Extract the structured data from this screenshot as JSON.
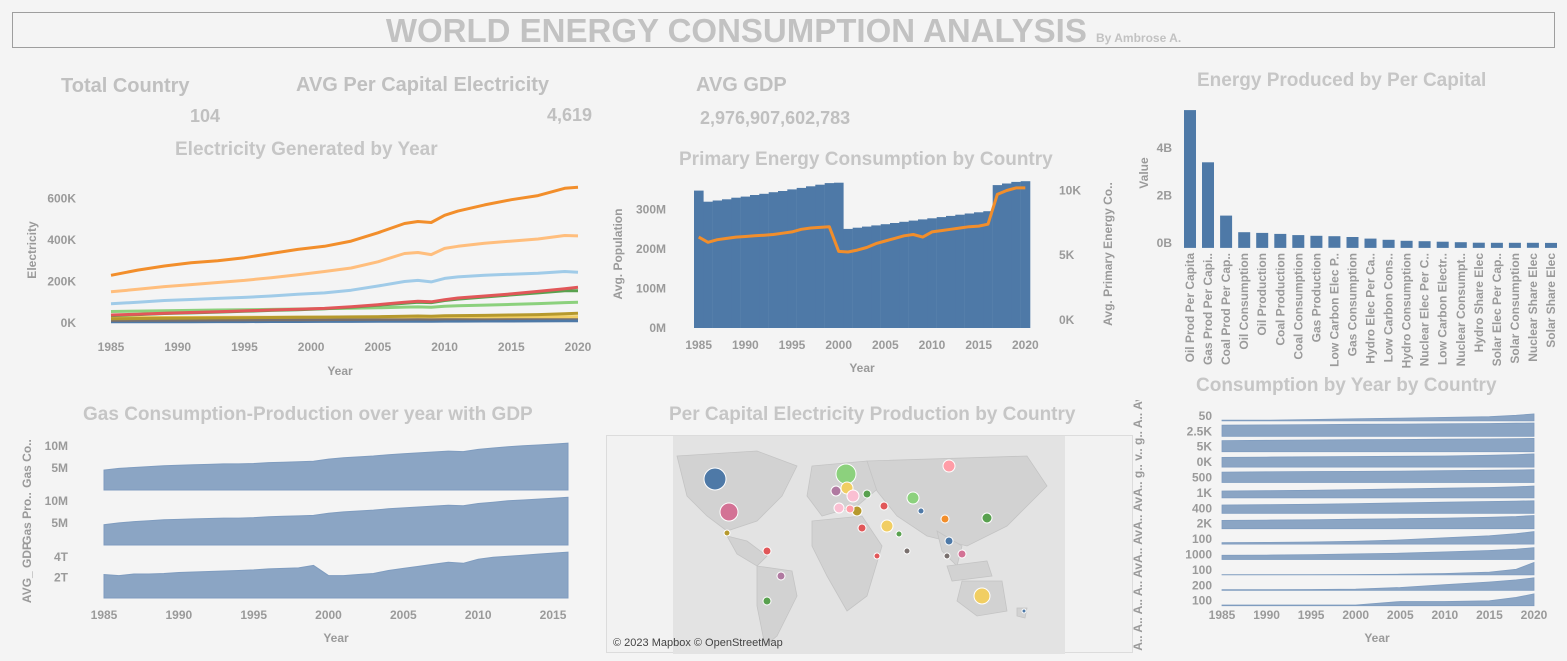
{
  "header": {
    "title": "WORLD ENERGY CONSUMPTION ANALYSIS",
    "byline": "By Ambrose A."
  },
  "kpis": [
    {
      "label": "Total Country",
      "value": "104"
    },
    {
      "label": "AVG Per Capital Electricity",
      "value": "4,619"
    },
    {
      "label": "AVG GDP",
      "value": "2,976,907,602,783"
    }
  ],
  "colors": {
    "bar_blue": "#4e79a7",
    "area_blue": "#8ba5c4",
    "line_orange": "#f28e2b",
    "text_grey": "#c6c6c6",
    "axis_grey": "#9a9a9a"
  },
  "map": {
    "title": "Per Capital Electricity Production by Country",
    "credit": "© 2023 Mapbox © OpenStreetMap"
  },
  "chart_data": [
    {
      "id": "electricity",
      "type": "line",
      "title": "Electricity Generated by Year",
      "xlabel": "Year",
      "ylabel": "Electricity",
      "xlim": [
        1985,
        2020
      ],
      "ylim": [
        -20000,
        700000
      ],
      "x_ticks": [
        1985,
        1990,
        1995,
        2000,
        2005,
        2010,
        2015,
        2020
      ],
      "y_ticks": [
        0,
        200000,
        400000,
        600000
      ],
      "y_tick_labels": [
        "0K",
        "200K",
        "400K",
        "600K"
      ],
      "x": [
        1985,
        1987,
        1989,
        1991,
        1993,
        1995,
        1997,
        1999,
        2001,
        2003,
        2005,
        2007,
        2008,
        2009,
        2010,
        2011,
        2013,
        2015,
        2017,
        2019,
        2020
      ],
      "series": [
        {
          "color": "#f28e2b",
          "values": [
            230000,
            255000,
            275000,
            290000,
            300000,
            315000,
            335000,
            355000,
            370000,
            395000,
            435000,
            480000,
            490000,
            485000,
            520000,
            540000,
            570000,
            595000,
            615000,
            650000,
            655000
          ]
        },
        {
          "color": "#ffbe7d",
          "values": [
            150000,
            162000,
            175000,
            185000,
            195000,
            205000,
            218000,
            232000,
            248000,
            265000,
            295000,
            335000,
            340000,
            330000,
            360000,
            370000,
            385000,
            395000,
            405000,
            422000,
            420000
          ]
        },
        {
          "color": "#a0cbe8",
          "values": [
            92000,
            100000,
            108000,
            113000,
            118000,
            123000,
            130000,
            138000,
            145000,
            158000,
            178000,
            200000,
            205000,
            198000,
            215000,
            222000,
            230000,
            235000,
            240000,
            248000,
            245000
          ]
        },
        {
          "color": "#e15759",
          "values": [
            38000,
            42000,
            46000,
            50000,
            54000,
            58000,
            62000,
            66000,
            70000,
            78000,
            88000,
            100000,
            104000,
            102000,
            112000,
            120000,
            130000,
            140000,
            152000,
            165000,
            172000
          ]
        },
        {
          "color": "#59a14f",
          "values": [
            35000,
            40000,
            45000,
            48000,
            52000,
            56000,
            60000,
            63000,
            68000,
            75000,
            85000,
            95000,
            100000,
            98000,
            108000,
            115000,
            125000,
            135000,
            145000,
            155000,
            155000
          ]
        },
        {
          "color": "#8cd17d",
          "values": [
            55000,
            57000,
            59000,
            60000,
            62000,
            63000,
            65000,
            67000,
            69000,
            71000,
            73000,
            76000,
            77000,
            75000,
            80000,
            83000,
            86000,
            89000,
            93000,
            98000,
            100000
          ]
        },
        {
          "color": "#b6992d",
          "values": [
            20000,
            21000,
            22000,
            23000,
            24000,
            25000,
            26000,
            27000,
            28000,
            29000,
            30000,
            32000,
            33000,
            32000,
            34000,
            35000,
            36000,
            38000,
            40000,
            44000,
            46000
          ]
        },
        {
          "color": "#f1ce63",
          "values": [
            25000,
            25500,
            26000,
            26000,
            26500,
            27000,
            27500,
            28000,
            28000,
            28500,
            29000,
            29000,
            29500,
            29000,
            29500,
            29500,
            29000,
            29500,
            30000,
            30000,
            30000
          ]
        },
        {
          "color": "#79706e",
          "values": [
            12000,
            12500,
            13000,
            13500,
            14000,
            14500,
            15000,
            15500,
            16000,
            16500,
            17000,
            18000,
            18500,
            18000,
            19000,
            19500,
            20000,
            21000,
            22000,
            23000,
            23000
          ]
        },
        {
          "color": "#4e79a7",
          "values": [
            5000,
            5000,
            5500,
            5500,
            6000,
            6000,
            6500,
            6500,
            7000,
            7000,
            7500,
            8000,
            8000,
            8000,
            8500,
            8500,
            9000,
            9000,
            9500,
            10000,
            10000
          ]
        }
      ]
    },
    {
      "id": "primary",
      "type": "bar",
      "title": "Primary Energy Consumption by Country",
      "xlabel": "Year",
      "ylabel": "Avg. Population",
      "y2label": "Avg. Primary Energy Co..",
      "xlim": [
        1984.5,
        2020.5
      ],
      "ylim": [
        0,
        380
      ],
      "y_ticks": [
        0,
        100,
        200,
        300
      ],
      "y_tick_labels": [
        "0M",
        "100M",
        "200M",
        "300M"
      ],
      "y2lim": [
        0,
        10500
      ],
      "y2_ticks": [
        0,
        5000,
        10000
      ],
      "y2_tick_labels": [
        "0K",
        "5K",
        "10K"
      ],
      "x_ticks": [
        1985,
        1990,
        1995,
        2000,
        2005,
        2010,
        2015,
        2020
      ],
      "x": [
        1985,
        1986,
        1987,
        1988,
        1989,
        1990,
        1991,
        1992,
        1993,
        1994,
        1995,
        1996,
        1997,
        1998,
        1999,
        2000,
        2001,
        2002,
        2003,
        2004,
        2005,
        2006,
        2007,
        2008,
        2009,
        2010,
        2011,
        2012,
        2013,
        2014,
        2015,
        2016,
        2017,
        2018,
        2019,
        2020
      ],
      "bar_values": [
        348,
        320,
        323,
        326,
        330,
        333,
        337,
        340,
        344,
        347,
        351,
        355,
        359,
        363,
        367,
        368,
        251,
        254,
        257,
        260,
        263,
        266,
        269,
        272,
        275,
        278,
        281,
        284,
        287,
        290,
        293,
        296,
        362,
        366,
        370,
        372
      ],
      "line_values": [
        6400,
        6000,
        6200,
        6300,
        6400,
        6450,
        6500,
        6550,
        6600,
        6700,
        6800,
        7000,
        7100,
        7150,
        7200,
        5300,
        5250,
        5400,
        5600,
        5900,
        6100,
        6300,
        6500,
        6600,
        6400,
        6800,
        6900,
        7000,
        7100,
        7200,
        7250,
        7400,
        9700,
        10000,
        10200,
        10200
      ]
    },
    {
      "id": "energy_per_capita",
      "type": "bar",
      "title": "Energy Produced by Per Capital",
      "ylabel": "Value",
      "ylim": [
        -0.3,
        5.9
      ],
      "y_ticks": [
        0,
        2,
        4
      ],
      "y_tick_labels": [
        "0B",
        "2B",
        "4B"
      ],
      "categories": [
        "Oil Prod Per Capita",
        "Gas Prod Per Capi..",
        "Coal Prod Per Cap..",
        "Oil Consumption",
        "Oil Production",
        "Coal Production",
        "Coal Consumption",
        "Gas Production",
        "Low Carbon Elec P..",
        "Gas Consumption",
        "Hydro Elec Per Ca..",
        "Low Carbon Cons..",
        "Hydro Consumption",
        "Nuclear Elec Per C..",
        "Low Carbon Electr..",
        "Nuclear Consumpt..",
        "Hydro Share Elec",
        "Solar Elec Per Cap..",
        "Solar Consumption",
        "Nuclear Share Elec",
        "Solar Share Elec"
      ],
      "values": [
        5.6,
        3.4,
        1.15,
        0.45,
        0.42,
        0.38,
        0.33,
        0.3,
        0.28,
        0.25,
        0.18,
        0.13,
        0.09,
        0.07,
        0.05,
        0.03,
        0.01,
        0.005,
        0.003,
        0.002,
        0.001
      ]
    },
    {
      "id": "gas_gdp",
      "type": "area",
      "title": "Gas Consumption-Production over year with GDP",
      "xlabel": "Year",
      "xlim": [
        1985,
        2016
      ],
      "x_ticks": [
        1985,
        1990,
        1995,
        2000,
        2005,
        2010,
        2015
      ],
      "x": [
        1985,
        1986,
        1987,
        1988,
        1989,
        1990,
        1991,
        1992,
        1993,
        1994,
        1995,
        1996,
        1997,
        1998,
        1999,
        2000,
        2001,
        2002,
        2003,
        2004,
        2005,
        2006,
        2007,
        2008,
        2009,
        2010,
        2011,
        2012,
        2013,
        2014,
        2015,
        2016
      ],
      "series": [
        {
          "name": "Gas Co..",
          "ylim": [
            0,
            12
          ],
          "y_ticks": [
            5,
            10
          ],
          "y_tick_labels": [
            "5M",
            "10M"
          ],
          "values": [
            4.5,
            4.9,
            5.1,
            5.3,
            5.5,
            5.6,
            5.7,
            5.8,
            5.9,
            5.9,
            6.0,
            6.2,
            6.3,
            6.4,
            6.5,
            7.0,
            7.3,
            7.5,
            7.7,
            8.0,
            8.2,
            8.4,
            8.6,
            8.8,
            8.7,
            9.2,
            9.5,
            9.8,
            10.0,
            10.2,
            10.4,
            10.6
          ]
        },
        {
          "name": "Gas Pro..",
          "ylim": [
            0,
            12
          ],
          "y_ticks": [
            5,
            10
          ],
          "y_tick_labels": [
            "5M",
            "10M"
          ],
          "values": [
            4.6,
            5.0,
            5.3,
            5.5,
            5.7,
            5.8,
            5.9,
            6.0,
            6.1,
            6.1,
            6.2,
            6.4,
            6.5,
            6.6,
            6.7,
            7.2,
            7.5,
            7.7,
            7.9,
            8.2,
            8.4,
            8.6,
            8.8,
            9.0,
            8.9,
            9.4,
            9.7,
            10.0,
            10.2,
            10.4,
            10.6,
            10.8
          ]
        },
        {
          "name": "AVG_ GDP",
          "ylim": [
            0,
            5
          ],
          "y_ticks": [
            2,
            4
          ],
          "y_tick_labels": [
            "2T",
            "4T"
          ],
          "values": [
            2.3,
            2.2,
            2.35,
            2.35,
            2.4,
            2.5,
            2.55,
            2.6,
            2.65,
            2.7,
            2.75,
            2.85,
            2.9,
            2.95,
            3.2,
            2.2,
            2.2,
            2.3,
            2.4,
            2.7,
            2.9,
            3.1,
            3.3,
            3.5,
            3.4,
            3.8,
            4.0,
            4.1,
            4.2,
            4.3,
            4.4,
            4.5
          ]
        }
      ]
    },
    {
      "id": "consumption_country",
      "type": "area",
      "title": "Consumption by Year by Country",
      "xlabel": "Year",
      "xlim": [
        1985,
        2020
      ],
      "x_ticks": [
        1985,
        1990,
        1995,
        2000,
        2005,
        2010,
        2015,
        2020
      ],
      "y_axis_text": "A.. A.. A.. A.. AvA.. AvA.. AvA.. g.. v.. g.. A.. AvAvAv",
      "rows": [
        {
          "tick": "50",
          "values": [
            0.05,
            0.05,
            0.1,
            0.15,
            0.2,
            0.25,
            0.3,
            0.4,
            0.5
          ]
        },
        {
          "tick": "2.5K",
          "values": [
            0.8,
            0.82,
            0.84,
            0.86,
            0.88,
            0.9,
            0.92,
            0.94,
            0.96
          ]
        },
        {
          "tick": "5K",
          "values": [
            0.8,
            0.82,
            0.84,
            0.86,
            0.88,
            0.9,
            0.92,
            0.94,
            0.96
          ]
        },
        {
          "tick": "0K",
          "values": [
            0.7,
            0.72,
            0.74,
            0.76,
            0.78,
            0.8,
            0.85,
            0.9,
            0.95
          ]
        },
        {
          "tick": "500",
          "values": [
            0.75,
            0.77,
            0.79,
            0.8,
            0.82,
            0.85,
            0.88,
            0.9,
            0.92
          ]
        },
        {
          "tick": "1K",
          "values": [
            0.5,
            0.52,
            0.55,
            0.6,
            0.65,
            0.7,
            0.75,
            0.8,
            0.85
          ]
        },
        {
          "tick": "400",
          "values": [
            0.6,
            0.62,
            0.65,
            0.7,
            0.75,
            0.8,
            0.85,
            0.88,
            0.9
          ]
        },
        {
          "tick": "2K",
          "values": [
            0.6,
            0.62,
            0.64,
            0.68,
            0.72,
            0.76,
            0.82,
            0.88,
            0.95
          ]
        },
        {
          "tick": "100",
          "values": [
            0.1,
            0.12,
            0.15,
            0.2,
            0.3,
            0.45,
            0.6,
            0.75,
            0.9
          ]
        },
        {
          "tick": "1000",
          "values": [
            0.3,
            0.32,
            0.35,
            0.4,
            0.45,
            0.55,
            0.65,
            0.75,
            0.85
          ]
        },
        {
          "tick": "100",
          "values": [
            0.02,
            0.02,
            0.02,
            0.03,
            0.05,
            0.1,
            0.2,
            0.4,
            0.9
          ]
        },
        {
          "tick": "200",
          "values": [
            0.05,
            0.05,
            0.06,
            0.08,
            0.2,
            0.4,
            0.6,
            0.75,
            0.9
          ]
        },
        {
          "tick": "100",
          "values": [
            0.05,
            0.05,
            0.05,
            0.05,
            0.3,
            0.3,
            0.35,
            0.6,
            0.85
          ]
        }
      ],
      "row_x": [
        1985,
        1990,
        1995,
        2000,
        2005,
        2010,
        2015,
        2018,
        2020
      ]
    }
  ]
}
